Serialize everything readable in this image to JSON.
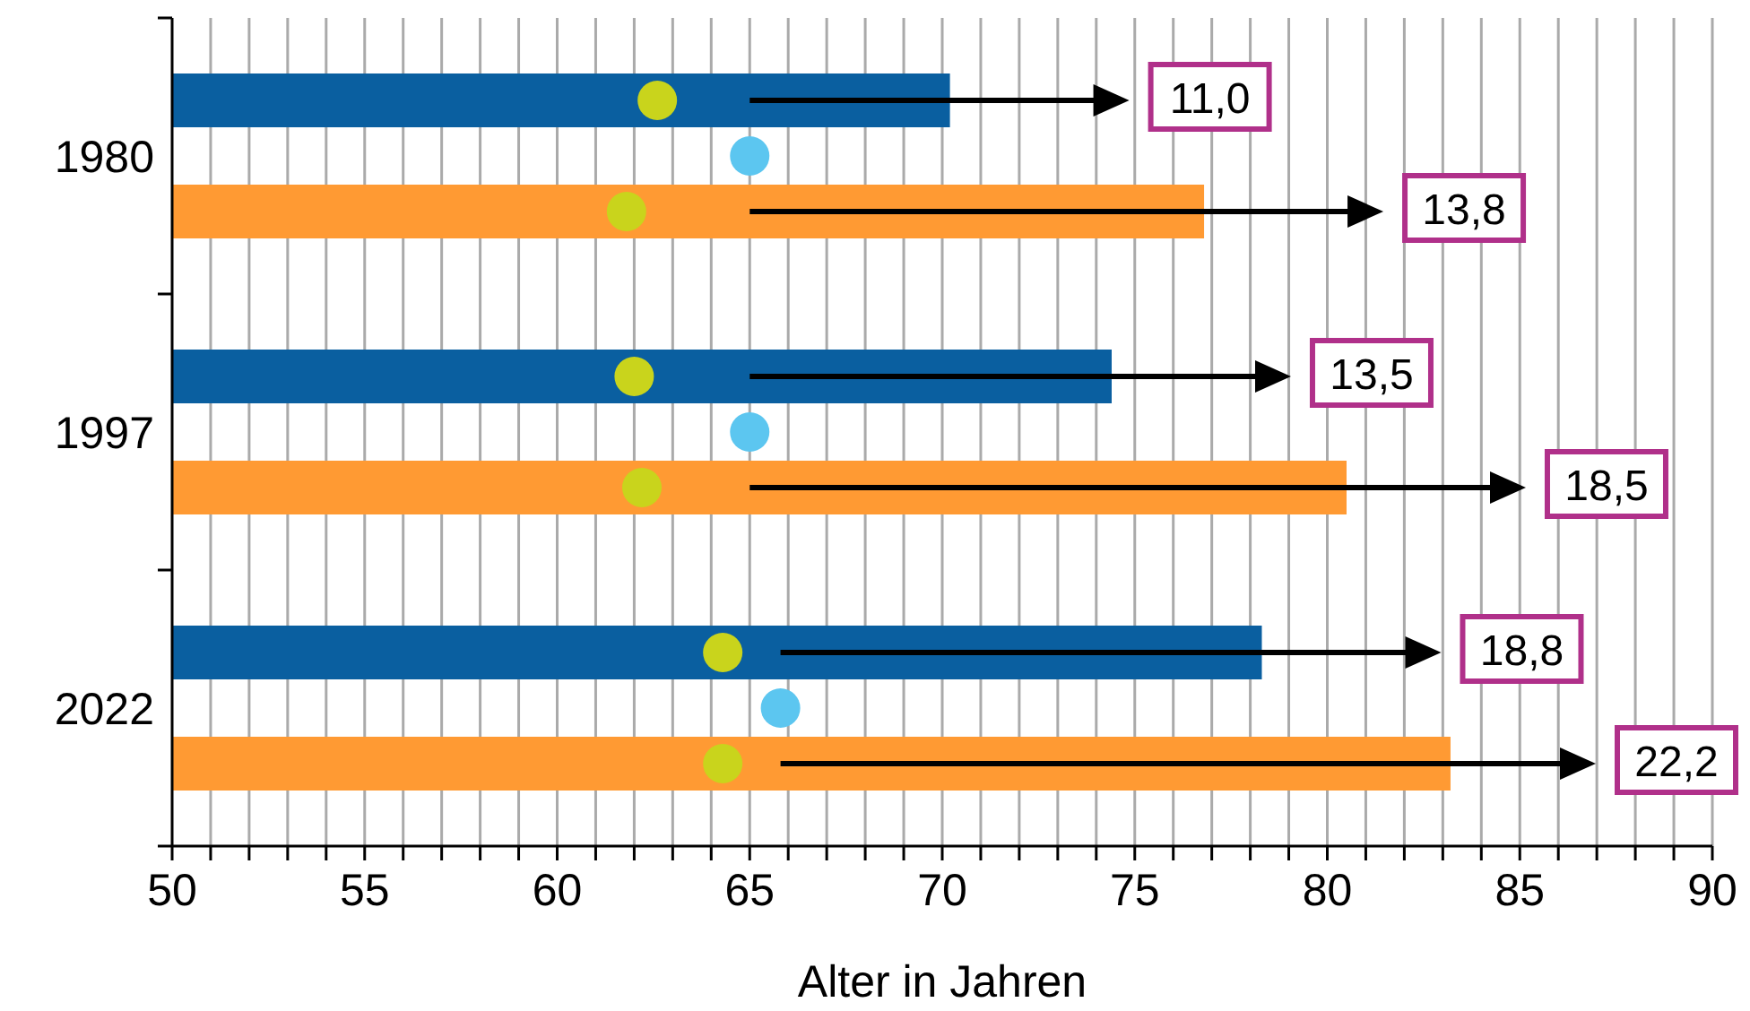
{
  "chart_data": {
    "type": "bar",
    "orientation": "horizontal",
    "xlabel": "Alter in Jahren",
    "categories": [
      "1980",
      "1997",
      "2022"
    ],
    "series": [
      {
        "color": "#0a5fa0",
        "values": [
          70.2,
          74.4,
          78.3
        ]
      },
      {
        "color": "#ff9a33",
        "values": [
          76.8,
          80.5,
          83.2
        ]
      },
      {
        "type": "scatter",
        "color": "#c9d41c",
        "values": [
          62.6,
          62.0,
          64.3
        ]
      },
      {
        "type": "scatter",
        "color": "#5cc6f0",
        "values": [
          65.0,
          65.0,
          65.8
        ]
      },
      {
        "type": "scatter",
        "color": "#c9d41c",
        "values": [
          61.8,
          62.2,
          64.3
        ]
      }
    ],
    "xlim": [
      50,
      90
    ],
    "xticks": [
      50,
      {
        "value": 51,
        "label": null
      },
      {
        "value": 52,
        "label": null
      },
      {
        "value": 53,
        "label": null
      },
      {
        "value": 54,
        "label": null
      },
      55,
      {
        "value": 56,
        "label": null
      },
      {
        "value": 57,
        "label": null
      },
      {
        "value": 58,
        "label": null
      },
      {
        "value": 59,
        "label": null
      },
      60,
      {
        "value": 61,
        "label": null
      },
      {
        "value": 62,
        "label": null
      },
      {
        "value": 63,
        "label": null
      },
      {
        "value": 64,
        "label": null
      },
      65,
      {
        "value": 66,
        "label": null
      },
      {
        "value": 67,
        "label": null
      },
      {
        "value": 68,
        "label": null
      },
      {
        "value": 69,
        "label": null
      },
      70,
      {
        "value": 71,
        "label": null
      },
      {
        "value": 72,
        "label": null
      },
      {
        "value": 73,
        "label": null
      },
      {
        "value": 74,
        "label": null
      },
      75,
      {
        "value": 76,
        "label": null
      },
      {
        "value": 77,
        "label": null
      },
      {
        "value": 78,
        "label": null
      },
      {
        "value": 79,
        "label": null
      },
      80,
      {
        "value": 81,
        "label": null
      },
      {
        "value": 82,
        "label": null
      },
      {
        "value": 83,
        "label": null
      },
      {
        "value": 84,
        "label": null
      },
      85,
      {
        "value": 86,
        "label": null
      },
      {
        "value": 87,
        "label": null
      },
      {
        "value": 88,
        "label": null
      },
      {
        "value": 89,
        "label": null
      },
      90
    ],
    "grid": "x",
    "marker": "circle",
    "annotations": [
      "11,0",
      "13,8",
      "13,5",
      "18,5",
      "18,8",
      "22,2"
    ]
  }
}
